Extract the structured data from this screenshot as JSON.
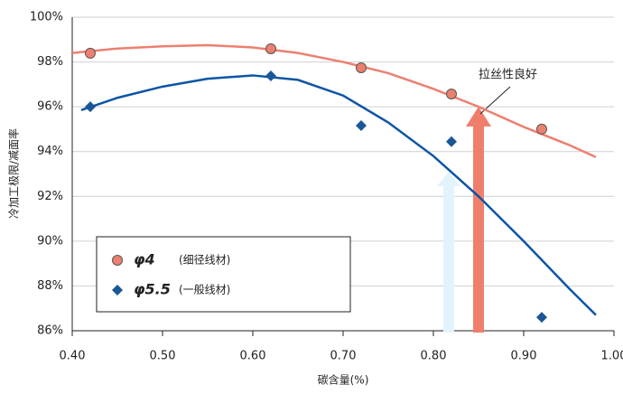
{
  "chart_data": {
    "type": "scatter",
    "y_label": "冷加工极限/减面率",
    "x_label": "碳含量(%)",
    "annotation": "拉丝性良好",
    "x": [
      0.42,
      0.62,
      0.72,
      0.82,
      0.92
    ],
    "series": [
      {
        "name": "φ4",
        "description": "(细径线材)",
        "color": "#ec8070",
        "curve_color": "#ec8070",
        "marker": "circle",
        "values": [
          98.39,
          98.59,
          97.74,
          96.57,
          95.0
        ],
        "fit_x": [
          0.4,
          0.45,
          0.5,
          0.55,
          0.6,
          0.65,
          0.7,
          0.75,
          0.8,
          0.85,
          0.9,
          0.95,
          0.98
        ],
        "fit_values": [
          98.4,
          98.6,
          98.7,
          98.75,
          98.65,
          98.4,
          98.0,
          97.5,
          96.8,
          96.0,
          95.1,
          94.3,
          93.75
        ]
      },
      {
        "name": "φ5.5",
        "description": "(一般线材)",
        "color": "#1a5796",
        "curve_color": "#0c55a5",
        "marker": "diamond",
        "values": [
          96.0,
          97.38,
          95.16,
          94.44,
          86.6
        ],
        "fit_x": [
          0.41,
          0.45,
          0.5,
          0.55,
          0.6,
          0.65,
          0.7,
          0.75,
          0.8,
          0.85,
          0.9,
          0.95,
          0.98
        ],
        "fit_values": [
          95.85,
          96.4,
          96.9,
          97.25,
          97.4,
          97.2,
          96.5,
          95.3,
          93.8,
          92.0,
          90.0,
          87.9,
          86.7
        ]
      }
    ],
    "xlim": [
      0.4,
      1.0
    ],
    "xticks": [
      {
        "value": 0.4,
        "label": "0.40"
      },
      {
        "value": 0.5,
        "label": "0.50"
      },
      {
        "value": 0.6,
        "label": "0.60"
      },
      {
        "value": 0.7,
        "label": "0.70"
      },
      {
        "value": 0.8,
        "label": "0.80"
      },
      {
        "value": 0.9,
        "label": "0.90"
      },
      {
        "value": 1.0,
        "label": "1.00"
      }
    ],
    "ylim": [
      86,
      100
    ],
    "yticks": [
      {
        "value": 86,
        "label": "86%"
      },
      {
        "value": 88,
        "label": "88%"
      },
      {
        "value": 90,
        "label": "90%"
      },
      {
        "value": 92,
        "label": "92%"
      },
      {
        "value": 94,
        "label": "94%"
      },
      {
        "value": 96,
        "label": "96%"
      },
      {
        "value": 98,
        "label": "98%"
      },
      {
        "value": 100,
        "label": "100%"
      }
    ],
    "grid": true
  }
}
